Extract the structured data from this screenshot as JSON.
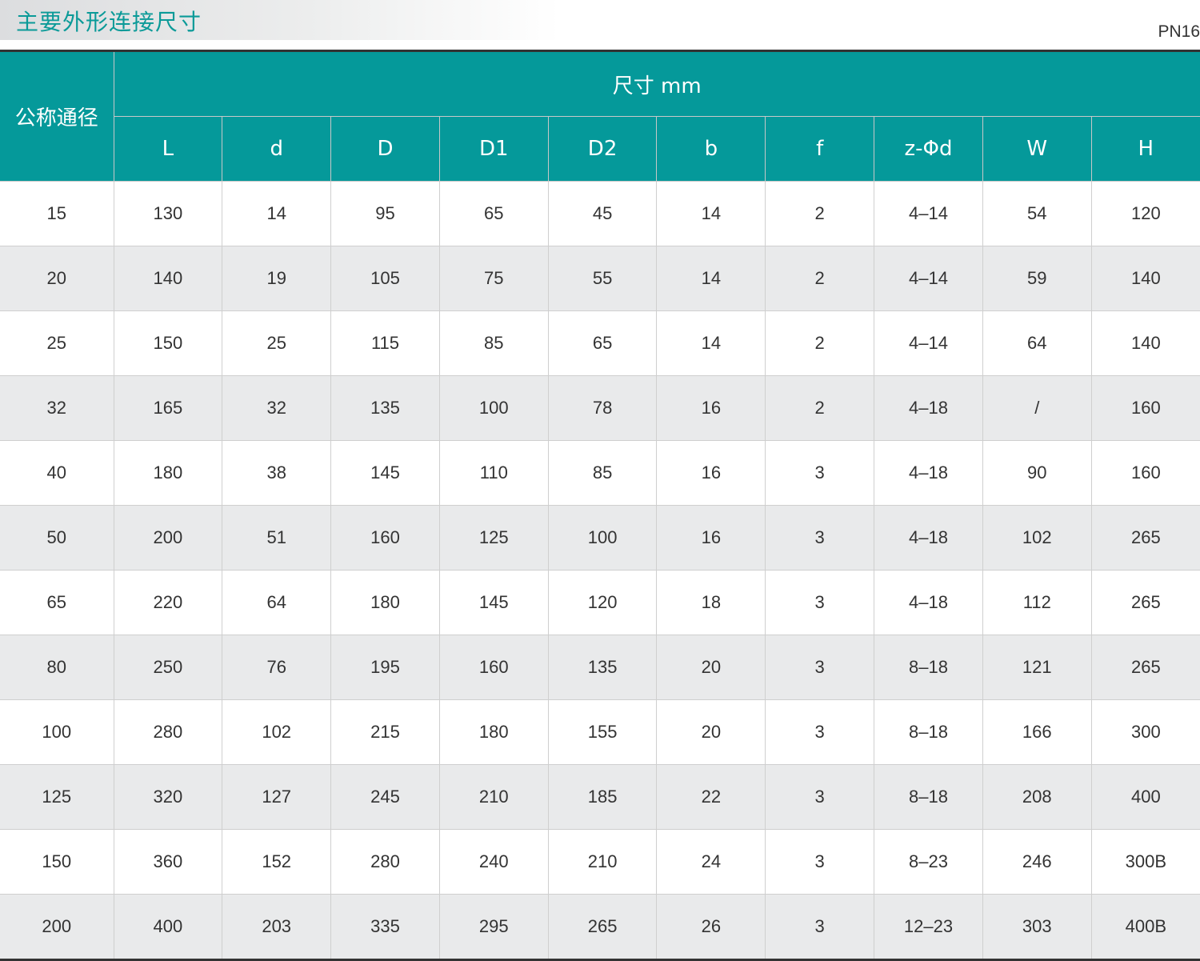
{
  "title": "主要外形连接尺寸",
  "pressure_class": "PN16",
  "colors": {
    "header_bg": "#05999a",
    "title_text": "#0b9a98",
    "alt_row": "#e9eaeb"
  },
  "table": {
    "row_header": "公称通径",
    "group_header": "尺寸 mm",
    "columns": [
      "L",
      "d",
      "D",
      "D1",
      "D2",
      "b",
      "f",
      "z-Φd",
      "W",
      "H"
    ],
    "rows": [
      [
        "15",
        "130",
        "14",
        "95",
        "65",
        "45",
        "14",
        "2",
        "4–14",
        "54",
        "120"
      ],
      [
        "20",
        "140",
        "19",
        "105",
        "75",
        "55",
        "14",
        "2",
        "4–14",
        "59",
        "140"
      ],
      [
        "25",
        "150",
        "25",
        "115",
        "85",
        "65",
        "14",
        "2",
        "4–14",
        "64",
        "140"
      ],
      [
        "32",
        "165",
        "32",
        "135",
        "100",
        "78",
        "16",
        "2",
        "4–18",
        "/",
        "160"
      ],
      [
        "40",
        "180",
        "38",
        "145",
        "110",
        "85",
        "16",
        "3",
        "4–18",
        "90",
        "160"
      ],
      [
        "50",
        "200",
        "51",
        "160",
        "125",
        "100",
        "16",
        "3",
        "4–18",
        "102",
        "265"
      ],
      [
        "65",
        "220",
        "64",
        "180",
        "145",
        "120",
        "18",
        "3",
        "4–18",
        "112",
        "265"
      ],
      [
        "80",
        "250",
        "76",
        "195",
        "160",
        "135",
        "20",
        "3",
        "8–18",
        "121",
        "265"
      ],
      [
        "100",
        "280",
        "102",
        "215",
        "180",
        "155",
        "20",
        "3",
        "8–18",
        "166",
        "300"
      ],
      [
        "125",
        "320",
        "127",
        "245",
        "210",
        "185",
        "22",
        "3",
        "8–18",
        "208",
        "400"
      ],
      [
        "150",
        "360",
        "152",
        "280",
        "240",
        "210",
        "24",
        "3",
        "8–23",
        "246",
        "300B"
      ],
      [
        "200",
        "400",
        "203",
        "335",
        "295",
        "265",
        "26",
        "3",
        "12–23",
        "303",
        "400B"
      ]
    ]
  }
}
